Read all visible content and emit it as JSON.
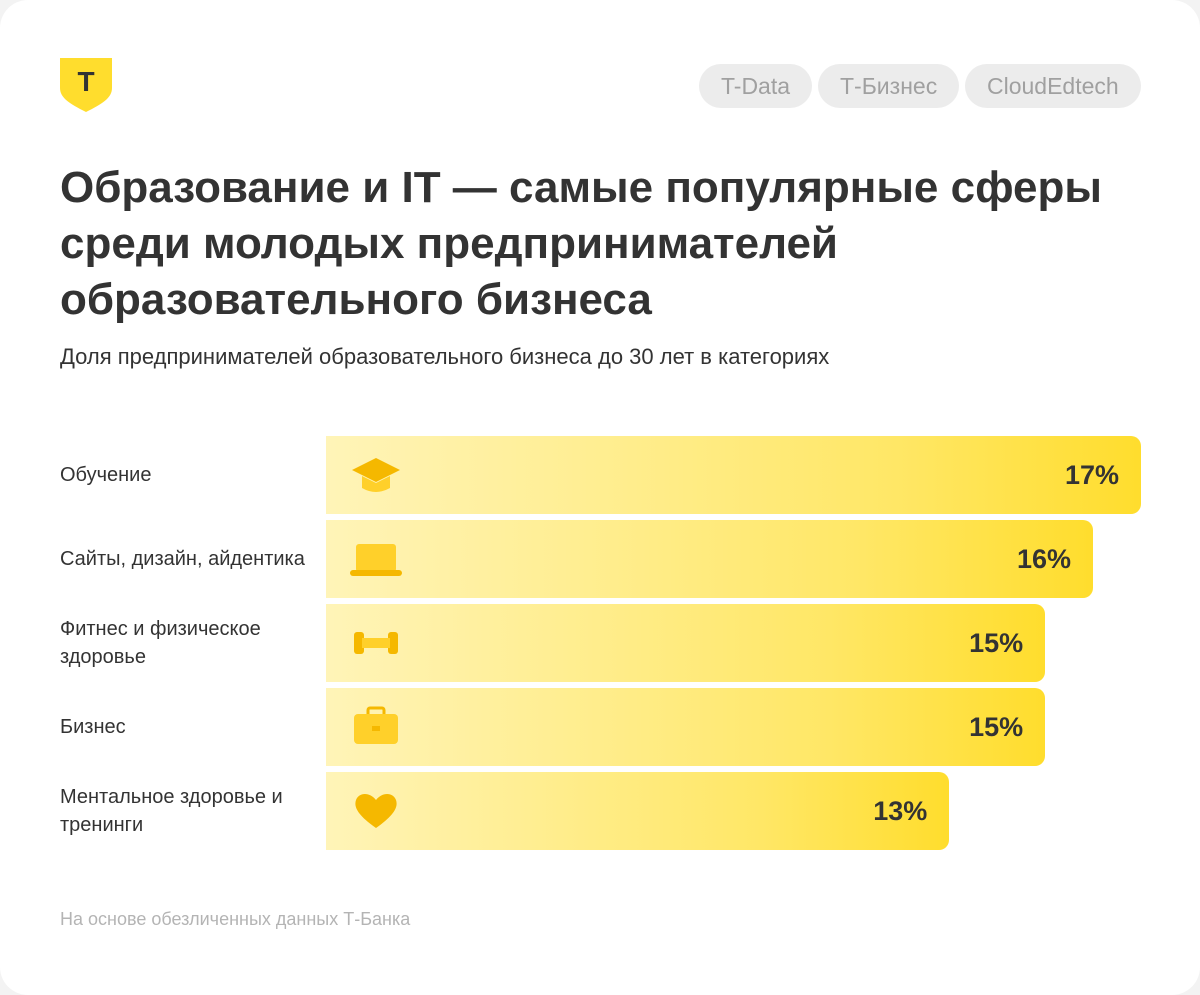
{
  "logo": "Т",
  "tags": [
    "T-Data",
    "Т-Бизнес",
    "CloudEdtech"
  ],
  "chart_data": {
    "type": "bar",
    "orientation": "horizontal",
    "title": "Образование и IT — самые популярные сферы среди молодых предпринимателей образовательного бизнеса",
    "subtitle": "Доля предпринимателей образовательного бизнеса до 30 лет в категориях",
    "categories": [
      "Обучение",
      "Сайты, дизайн, айдентика",
      "Фитнес и физическое здоровье",
      "Бизнес",
      "Ментальное здоровье и тренинги"
    ],
    "values": [
      17,
      16,
      15,
      15,
      13
    ],
    "value_labels": [
      "17%",
      "16%",
      "15%",
      "15%",
      "13%"
    ],
    "color": "#ffdd2d"
  },
  "footnote": "На основе обезличенных данных Т-Банка"
}
